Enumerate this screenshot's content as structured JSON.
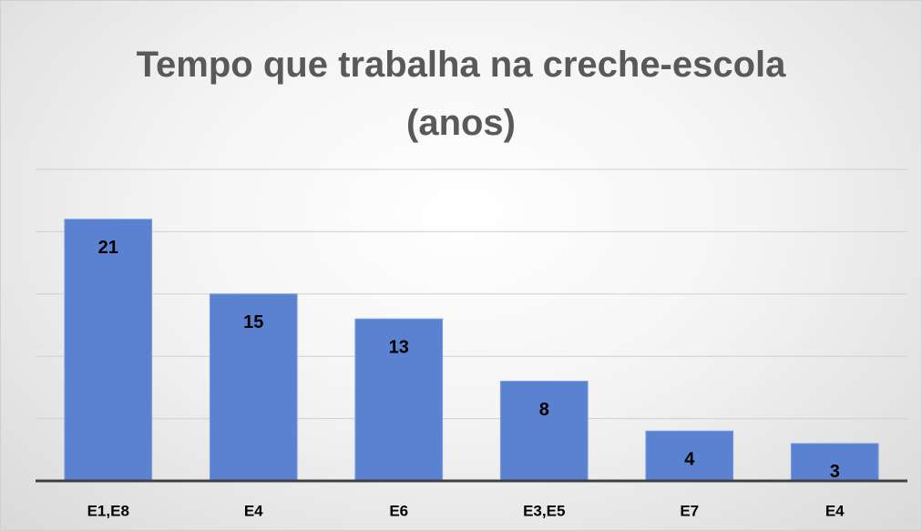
{
  "chart_data": {
    "type": "bar",
    "title": "Tempo que trabalha na creche-escola (anos)",
    "categories": [
      "E1,E8",
      "E4",
      "E6",
      "E3,E5",
      "E7",
      "E4"
    ],
    "values": [
      21,
      15,
      13,
      8,
      4,
      3
    ],
    "color": "#5b82d1",
    "ylim": [
      0,
      25
    ],
    "yticks": [
      0,
      5,
      10,
      15,
      20,
      25
    ],
    "grid": true
  }
}
